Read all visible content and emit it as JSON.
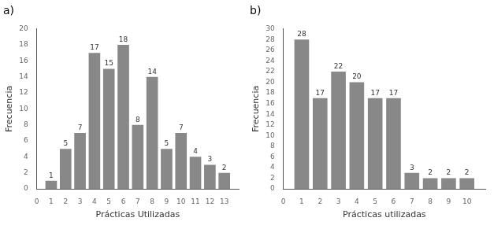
{
  "chart_data": [
    {
      "type": "bar",
      "title": "a)",
      "x": [
        1,
        2,
        3,
        4,
        5,
        6,
        7,
        8,
        9,
        10,
        11,
        12,
        13
      ],
      "values": [
        1,
        5,
        7,
        17,
        15,
        18,
        8,
        14,
        5,
        7,
        4,
        3,
        2
      ],
      "xlabel": "Prácticas Utilizadas",
      "ylabel": "Frecuencia",
      "xlim": [
        0,
        14
      ],
      "xticks": [
        0,
        1,
        2,
        3,
        4,
        5,
        6,
        7,
        8,
        9,
        10,
        11,
        12,
        13
      ],
      "ylim": [
        0,
        20
      ],
      "yticks": [
        0,
        2,
        4,
        6,
        8,
        10,
        12,
        14,
        16,
        18,
        20
      ],
      "color": "#888888",
      "data_labels": true,
      "grid": false,
      "legend": false
    },
    {
      "type": "bar",
      "title": "b)",
      "x": [
        1,
        2,
        3,
        4,
        5,
        6,
        7,
        8,
        9,
        10
      ],
      "values": [
        28,
        17,
        22,
        20,
        17,
        17,
        3,
        2,
        2,
        2
      ],
      "xlabel": "Prácticas utilizadas",
      "ylabel": "Frecuencia",
      "xlim": [
        0,
        11
      ],
      "xticks": [
        0,
        1,
        2,
        3,
        4,
        5,
        6,
        7,
        8,
        9,
        10
      ],
      "ylim": [
        0,
        30
      ],
      "yticks": [
        0,
        2,
        4,
        6,
        8,
        10,
        12,
        14,
        16,
        18,
        20,
        22,
        24,
        26,
        28,
        30
      ],
      "color": "#888888",
      "data_labels": true,
      "grid": false,
      "legend": false
    }
  ]
}
